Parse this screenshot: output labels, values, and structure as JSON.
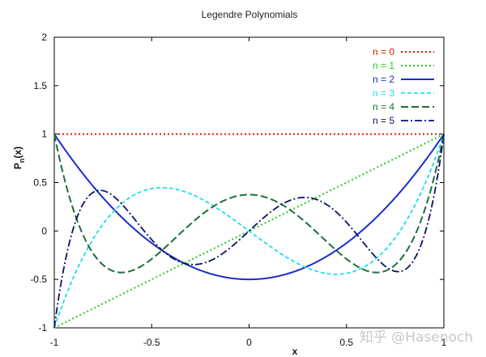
{
  "chart_data": {
    "type": "line",
    "title": "Legendre Polynomials",
    "xlabel": "x",
    "ylabel_base": "P",
    "ylabel_sub": "n",
    "ylabel_suffix": "(x)",
    "xlim": [
      -1,
      1
    ],
    "ylim": [
      -1,
      2
    ],
    "xticks": [
      -1,
      -0.5,
      0,
      0.5,
      1
    ],
    "xtick_labels": [
      "-1",
      "-0.5",
      "0",
      "0.5",
      "1"
    ],
    "yticks": [
      -1,
      -0.5,
      0,
      0.5,
      1,
      1.5,
      2
    ],
    "ytick_labels": [
      "-1",
      "-0.5",
      "0",
      "0.5",
      "1",
      "1.5",
      "2"
    ],
    "legend_position": "top-right",
    "series": [
      {
        "name": "n = 0",
        "n": 0,
        "color": "#cc2200",
        "style": "dotted"
      },
      {
        "name": "n = 1",
        "n": 1,
        "color": "#22cc22",
        "style": "dotted"
      },
      {
        "name": "n = 2",
        "n": 2,
        "color": "#1a2ecc",
        "style": "solid"
      },
      {
        "name": "n = 3",
        "n": 3,
        "color": "#22dde8",
        "style": "dashed"
      },
      {
        "name": "n = 4",
        "n": 4,
        "color": "#1e6e3a",
        "style": "longdash"
      },
      {
        "name": "n = 5",
        "n": 5,
        "color": "#0a1466",
        "style": "dashdot"
      }
    ]
  },
  "watermark": "知乎 @Hasenoch"
}
